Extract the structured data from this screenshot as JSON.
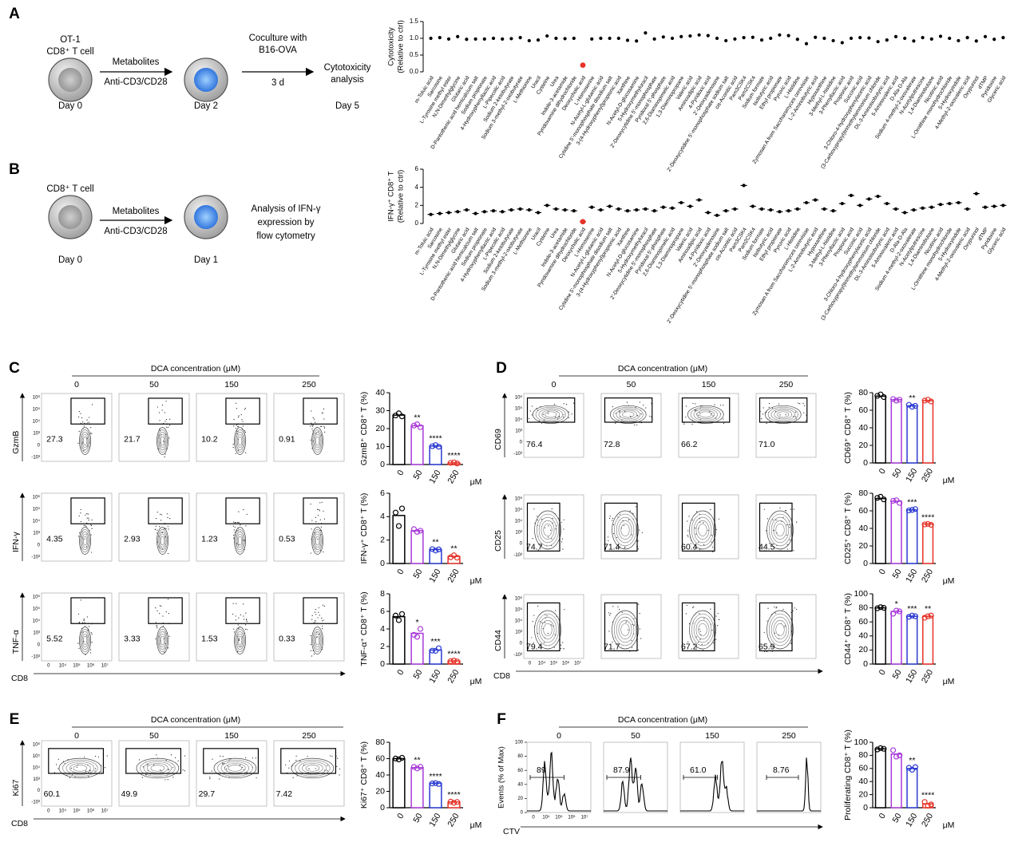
{
  "panels": {
    "A": {
      "letter": "A",
      "cell_type": [
        "OT-1",
        "CD8⁺ T cell"
      ],
      "treatment": [
        "Metabolites",
        "Anti-CD3/CD28"
      ],
      "days": [
        "Day 0",
        "Day 2",
        "Day 5"
      ],
      "coculture": [
        "Coculture with",
        "B16-OVA"
      ],
      "duration": "3 d",
      "readout": [
        "Cytotoxicity",
        "analysis"
      ]
    },
    "B": {
      "letter": "B",
      "cell_type": "CD8⁺ T cell",
      "treatment": [
        "Metabolites",
        "Anti-CD3/CD28"
      ],
      "days": [
        "Day 0",
        "Day 1"
      ],
      "readout": [
        "Analysis of IFN-γ",
        "expression by",
        "flow cytometry"
      ]
    },
    "C": {
      "letter": "C",
      "header": "DCA concentration (μM)",
      "x_label": "CD8",
      "rows": [
        {
          "marker": "GzmB",
          "gates": [
            "27.3",
            "21.7",
            "10.2",
            "0.91"
          ]
        },
        {
          "marker": "IFN-γ",
          "gates": [
            "4.35",
            "2.93",
            "1.23",
            "0.53"
          ]
        },
        {
          "marker": "TNF-α",
          "gates": [
            "5.52",
            "3.33",
            "1.53",
            "0.33"
          ]
        }
      ]
    },
    "D": {
      "letter": "D",
      "header": "DCA concentration (μM)",
      "x_label": "CD8",
      "rows": [
        {
          "marker": "CD69",
          "gates": [
            "76.4",
            "72.8",
            "66.2",
            "71.0"
          ]
        },
        {
          "marker": "CD25",
          "gates": [
            "74.7",
            "71.4",
            "60.4",
            "44.5"
          ]
        },
        {
          "marker": "CD44",
          "gates": [
            "79.4",
            "71.7",
            "67.2",
            "65.9"
          ]
        }
      ]
    },
    "E": {
      "letter": "E",
      "header": "DCA concentration (μM)",
      "x_label": "CD8",
      "rows": [
        {
          "marker": "Ki67",
          "gates": [
            "60.1",
            "49.9",
            "29.7",
            "7.42"
          ]
        }
      ]
    },
    "F": {
      "letter": "F",
      "header": "DCA concentration (μM)",
      "x_label": "CTV",
      "y_label": "Events (% of Max)",
      "yticks": [
        0,
        20,
        40,
        60,
        80,
        100
      ],
      "rows": [
        {
          "gates": [
            "89",
            "87.9",
            "61.0",
            "8.76"
          ]
        }
      ]
    }
  },
  "flow_axes": {
    "y": [
      "10⁶",
      "10⁵",
      "10⁴",
      "10³",
      "0",
      "-10³"
    ],
    "x": [
      "0",
      "10⁴",
      "10⁵",
      "10⁶",
      "10⁷"
    ]
  },
  "chart_data": [
    {
      "type": "dot",
      "ylabel": [
        "Cytotoxicity",
        "(Relative to ctrl)"
      ],
      "color": "#000000",
      "highlight": {
        "category": "Deoxycholic acid",
        "color": "#e8312a"
      },
      "ylim": [
        0,
        1.5
      ],
      "yticks": [
        {
          "value": 0,
          "label": "0.0"
        },
        {
          "value": 0.5,
          "label": "0.5"
        },
        {
          "value": 1,
          "label": "1.0"
        },
        {
          "value": 1.5,
          "label": "1.5"
        }
      ],
      "categories": [
        "m-Toluic acid",
        "Sarcosine",
        "L-Tyrosine methyl ester",
        "N,N-Dimethylglycine",
        "Glutaric acid",
        "D-Pantothenic acid hemicalcium salt",
        "Sodium propionate",
        "4-Hydroxyphenyllactic acid",
        "L-Pipecolic acid",
        "Sodium 2-ketobutyrate",
        "Sodium 3-methyl-2-oxobutyrate",
        "L-Methionine",
        "Uracil",
        "Cysteine",
        "Urea",
        "Indole-3-acetamide",
        "Pyridoxamine dihydrochloride",
        "Deoxycholic acid",
        "L-Homoserine",
        "N-Acetyl-L-glutamic acid",
        "Cytidine 5'-monophosphate disodium salt",
        "3-(4-Hydroxyphenyl)propionic acid",
        "Xanthine",
        "N-Acetyl-D-glucosamine",
        "5-Hydroxymethyluracil",
        "2'-Deoxycytidine 5'-monophosphate",
        "Pyridoxal 5'-phosphate",
        "2,6-Diaminopimelic acid",
        "1,3-Diaminopropane",
        "Valeric acid",
        "Aminoadipic acid",
        "4-Pyridoxic acid",
        "2'-Deoxyadenosine",
        "2'-Deoxycytidine 5'-monophosphate sodium salt",
        "cis-Aconitic acid",
        "Pam3CSK4",
        "Pam2CSK4",
        "Sodium formate",
        "Isobutyric acid",
        "Ethyl propionate",
        "Pyruvic acid",
        "L-Histidine",
        "Zymosan A from Saccharomyces cerevisiae",
        "L-2-Aminobutyric acid",
        "Hypoxanthine",
        "3-Methyl-L-histidine",
        "3-Phenyllactic acid",
        "Propionic acid",
        "Succinic acid",
        "3-Chloro-4-hydroxyphenylacetic acid",
        "(3-Carboxypropyl)trimethylammonium chloride",
        "DL-3-Aminoisobutyric acid",
        "5-Aminovaleric acid",
        "D-Ala-D-Ala",
        "Sodium 4-methyl-2-oxovalerate",
        "N-Acetylputrescine",
        "1,4-Diaminobutane",
        "Nicotinic acid",
        "L-Ornithine monohydrochloride",
        "5-Hydroxyindole",
        "4-Methyl-2-oxovaleric acid",
        "Oxypurinol",
        "dTMP",
        "Pyridoxine",
        "Glyceric acid"
      ],
      "values": [
        1.0,
        1.02,
        0.98,
        1.05,
        0.97,
        0.98,
        0.98,
        1.0,
        0.98,
        0.99,
        1.02,
        0.93,
        0.95,
        1.07,
        1.0,
        0.99,
        1.0,
        0.2,
        0.98,
        1.0,
        1.0,
        1.0,
        0.94,
        0.92,
        1.16,
        0.98,
        1.04,
        1.0,
        1.05,
        1.07,
        1.1,
        1.08,
        1.0,
        0.93,
        0.98,
        1.02,
        1.03,
        0.95,
        1.0,
        1.1,
        1.08,
        0.97,
        0.84,
        1.03,
        1.0,
        0.93,
        0.87,
        1.0,
        1.02,
        1.01,
        0.9,
        0.95,
        1.05,
        1.0,
        0.92,
        1.02,
        0.98,
        1.06,
        1.0,
        0.93,
        1.02,
        0.92,
        1.05,
        0.97,
        1.02
      ]
    },
    {
      "type": "dot",
      "ylabel": [
        "IFN-γ⁺ CD8⁺ T",
        "(Relative to ctrl)"
      ],
      "color": "#000000",
      "mean_line": true,
      "highlight": {
        "category": "Deoxycholic acid",
        "color": "#e8312a"
      },
      "ylim": [
        0,
        6
      ],
      "yticks": [
        0,
        2,
        4,
        6
      ],
      "values": [
        1.0,
        1.1,
        1.2,
        1.3,
        1.5,
        1.1,
        1.3,
        1.4,
        1.3,
        1.5,
        1.6,
        1.5,
        1.2,
        2.0,
        1.6,
        1.5,
        1.4,
        0.2,
        1.8,
        1.5,
        1.9,
        1.6,
        1.4,
        1.5,
        1.6,
        1.4,
        1.8,
        1.7,
        2.3,
        1.9,
        2.6,
        1.2,
        0.9,
        1.4,
        1.6,
        4.2,
        1.9,
        1.6,
        1.5,
        1.3,
        1.4,
        1.6,
        2.3,
        2.6,
        1.6,
        1.4,
        2.2,
        3.1,
        2.0,
        2.7,
        3.0,
        2.2,
        1.6,
        1.2,
        1.5,
        1.7,
        1.8,
        2.1,
        2.2,
        2.3,
        1.6,
        3.3,
        1.8,
        1.9,
        2.0
      ]
    },
    {
      "type": "bar",
      "ylabel": "GzmB⁺ CD8⁺ T (%)",
      "categories": [
        "0",
        "50",
        "150",
        "250"
      ],
      "unit": "μM",
      "colors": [
        "#000000",
        "#a83ad8",
        "#2b3bd1",
        "#e53228"
      ],
      "ylim": [
        0,
        40
      ],
      "yticks": [
        0,
        10,
        20,
        30,
        40
      ],
      "values": [
        27.5,
        21.6,
        10.3,
        0.9
      ],
      "points": [
        [
          27.3,
          28.5,
          26.8
        ],
        [
          21.7,
          22.4,
          20.8
        ],
        [
          10.2,
          10.8,
          9.9
        ],
        [
          0.91,
          1.2,
          0.6
        ]
      ],
      "annotations": [
        null,
        "**",
        "****",
        "****"
      ]
    },
    {
      "type": "bar",
      "ylabel": "IFN-γ⁺ CD8⁺ T (%)",
      "categories": [
        "0",
        "50",
        "150",
        "250"
      ],
      "unit": "μM",
      "colors": [
        "#000000",
        "#a83ad8",
        "#2b3bd1",
        "#e53228"
      ],
      "ylim": [
        0,
        6
      ],
      "yticks": [
        0,
        2,
        4,
        6
      ],
      "values": [
        4.1,
        2.8,
        1.2,
        0.6
      ],
      "points": [
        [
          4.35,
          3.2,
          4.7
        ],
        [
          2.93,
          2.7,
          2.8
        ],
        [
          1.23,
          1.1,
          1.2
        ],
        [
          0.53,
          0.7,
          0.5
        ]
      ],
      "annotations": [
        null,
        null,
        "**",
        "**"
      ]
    },
    {
      "type": "bar",
      "ylabel": "TNF-α⁺ CD8⁺ T (%)",
      "categories": [
        "0",
        "50",
        "150",
        "250"
      ],
      "unit": "μM",
      "colors": [
        "#000000",
        "#a83ad8",
        "#2b3bd1",
        "#e53228"
      ],
      "ylim": [
        0,
        8
      ],
      "yticks": [
        0,
        2,
        4,
        6,
        8
      ],
      "values": [
        5.4,
        3.5,
        1.6,
        0.35
      ],
      "points": [
        [
          5.52,
          5.0,
          5.7
        ],
        [
          3.33,
          3.1,
          4.0
        ],
        [
          1.53,
          1.5,
          1.8
        ],
        [
          0.33,
          0.4,
          0.3
        ]
      ],
      "annotations": [
        null,
        "*",
        "***",
        "****"
      ]
    },
    {
      "type": "bar",
      "ylabel": "CD69⁺ CD8⁺ T (%)",
      "categories": [
        "0",
        "50",
        "150",
        "250"
      ],
      "unit": "μM",
      "colors": [
        "#000000",
        "#a83ad8",
        "#2b3bd1",
        "#e53228"
      ],
      "ylim": [
        0,
        80
      ],
      "yticks": [
        0,
        20,
        40,
        60,
        80
      ],
      "values": [
        76,
        72,
        65,
        71
      ],
      "points": [
        [
          76.4,
          78,
          75
        ],
        [
          72.8,
          71,
          72
        ],
        [
          66.2,
          64,
          65
        ],
        [
          71.0,
          72,
          70
        ]
      ],
      "annotations": [
        null,
        null,
        "**",
        null
      ]
    },
    {
      "type": "bar",
      "ylabel": "CD25⁺ CD8⁺ T (%)",
      "categories": [
        "0",
        "50",
        "150",
        "250"
      ],
      "unit": "μM",
      "colors": [
        "#000000",
        "#a83ad8",
        "#2b3bd1",
        "#e53228"
      ],
      "ylim": [
        0,
        80
      ],
      "yticks": [
        0,
        20,
        40,
        60,
        80
      ],
      "values": [
        74,
        71,
        61,
        45
      ],
      "points": [
        [
          74.7,
          76,
          73
        ],
        [
          71.4,
          72,
          69
        ],
        [
          60.4,
          61,
          62
        ],
        [
          44.5,
          45,
          44
        ]
      ],
      "annotations": [
        null,
        null,
        "***",
        "****"
      ]
    },
    {
      "type": "bar",
      "ylabel": "CD44⁺ CD8⁺ T (%)",
      "categories": [
        "0",
        "50",
        "150",
        "250"
      ],
      "unit": "μM",
      "colors": [
        "#000000",
        "#a83ad8",
        "#2b3bd1",
        "#e53228"
      ],
      "ylim": [
        0,
        100
      ],
      "yticks": [
        0,
        20,
        40,
        60,
        80,
        100
      ],
      "values": [
        80,
        75,
        68,
        68
      ],
      "points": [
        [
          79.4,
          81,
          80
        ],
        [
          71.7,
          76,
          75
        ],
        [
          67.2,
          69,
          68
        ],
        [
          65.9,
          68,
          69
        ]
      ],
      "annotations": [
        null,
        "*",
        "***",
        "**"
      ]
    },
    {
      "type": "bar",
      "ylabel": "Ki67⁺ CD8⁺ T (%)",
      "categories": [
        "0",
        "50",
        "150",
        "250"
      ],
      "unit": "μM",
      "colors": [
        "#000000",
        "#a83ad8",
        "#2b3bd1",
        "#e53228"
      ],
      "ylim": [
        0,
        80
      ],
      "yticks": [
        0,
        20,
        40,
        60,
        80
      ],
      "values": [
        60,
        49,
        30,
        7
      ],
      "points": [
        [
          60.1,
          59,
          61
        ],
        [
          49.9,
          48,
          50
        ],
        [
          29.7,
          30,
          29
        ],
        [
          7.42,
          6,
          7
        ]
      ],
      "annotations": [
        null,
        "**",
        "****",
        "****"
      ]
    },
    {
      "type": "bar",
      "ylabel": "Proliferating CD8⁺ T (%)",
      "categories": [
        "0",
        "50",
        "150",
        "250"
      ],
      "unit": "μM",
      "colors": [
        "#000000",
        "#a83ad8",
        "#2b3bd1",
        "#e53228"
      ],
      "ylim": [
        0,
        100
      ],
      "yticks": [
        0,
        20,
        40,
        60,
        80,
        100
      ],
      "values": [
        90,
        82,
        60,
        6
      ],
      "points": [
        [
          89,
          91,
          90
        ],
        [
          87.9,
          78,
          80
        ],
        [
          61.0,
          58,
          62
        ],
        [
          8.76,
          3,
          5
        ]
      ],
      "annotations": [
        null,
        null,
        "**",
        "****"
      ]
    }
  ]
}
